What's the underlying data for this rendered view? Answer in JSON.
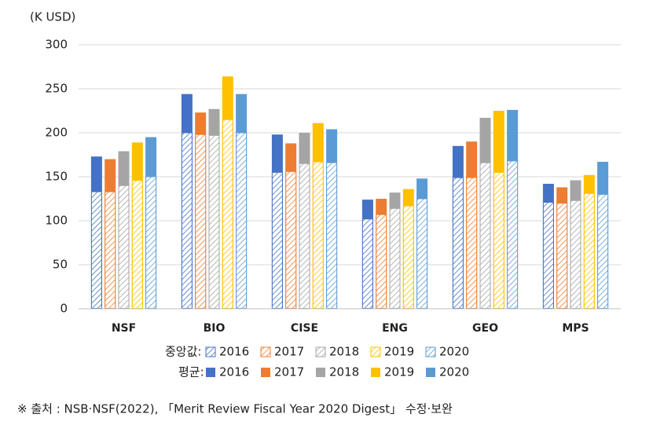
{
  "chart_data": {
    "type": "bar",
    "y_label": "(K USD)",
    "categories": [
      "NSF",
      "BIO",
      "CISE",
      "ENG",
      "GEO",
      "MPS"
    ],
    "ylim": [
      0,
      300
    ],
    "yticks": [
      0,
      50,
      100,
      150,
      200,
      250,
      300
    ],
    "grid": true,
    "median_label": "중앙값:",
    "mean_label": "평균:",
    "series": [
      {
        "name": "2016",
        "color": "#4472c4",
        "style": "hatched",
        "values": [
          133,
          200,
          155,
          102,
          149,
          121
        ]
      },
      {
        "name": "2017",
        "color": "#ed7d31",
        "style": "hatched",
        "values": [
          133,
          198,
          156,
          107,
          149,
          120
        ]
      },
      {
        "name": "2018",
        "color": "#a5a5a5",
        "style": "hatched",
        "values": [
          140,
          197,
          165,
          114,
          166,
          123
        ]
      },
      {
        "name": "2019",
        "color": "#ffc000",
        "style": "hatched",
        "values": [
          146,
          215,
          167,
          117,
          155,
          131
        ]
      },
      {
        "name": "2020",
        "color": "#5b9bd5",
        "style": "hatched",
        "values": [
          150,
          200,
          166,
          125,
          168,
          130
        ]
      },
      {
        "name": "2016",
        "color": "#4472c4",
        "style": "solid",
        "values": [
          173,
          244,
          198,
          124,
          185,
          142
        ]
      },
      {
        "name": "2017",
        "color": "#ed7d31",
        "style": "solid",
        "values": [
          170,
          223,
          188,
          125,
          190,
          138
        ]
      },
      {
        "name": "2018",
        "color": "#a5a5a5",
        "style": "solid",
        "values": [
          179,
          227,
          200,
          132,
          217,
          146
        ]
      },
      {
        "name": "2019",
        "color": "#ffc000",
        "style": "solid",
        "values": [
          189,
          264,
          211,
          136,
          225,
          152
        ]
      },
      {
        "name": "2020",
        "color": "#5b9bd5",
        "style": "solid",
        "values": [
          195,
          244,
          204,
          148,
          226,
          167
        ]
      }
    ]
  },
  "note": "※ 출처 : NSB·NSF(2022), 「Merit Review Fiscal Year 2020 Digest」 수정·보완"
}
